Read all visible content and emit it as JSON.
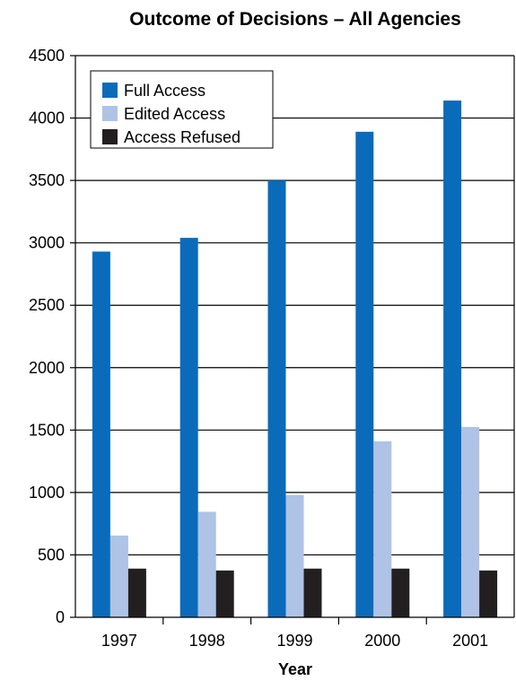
{
  "chart_data": {
    "type": "bar",
    "title": "Outcome of Decisions – All Agencies",
    "xlabel": "Year",
    "ylabel": "",
    "ylim": [
      0,
      4500
    ],
    "yticks": [
      0,
      500,
      1000,
      1500,
      2000,
      2500,
      3000,
      3500,
      4000,
      4500
    ],
    "categories": [
      "1997",
      "1998",
      "1999",
      "2000",
      "2001"
    ],
    "series": [
      {
        "name": "Full Access",
        "color": "#0a6bbb",
        "values": [
          2930,
          3040,
          3500,
          3890,
          4140
        ]
      },
      {
        "name": "Edited Access",
        "color": "#aec3e6",
        "values": [
          655,
          845,
          980,
          1410,
          1525
        ]
      },
      {
        "name": "Access Refused",
        "color": "#231f20",
        "values": [
          390,
          375,
          390,
          390,
          375
        ]
      }
    ],
    "grid": true,
    "legend_position": "top-left"
  }
}
